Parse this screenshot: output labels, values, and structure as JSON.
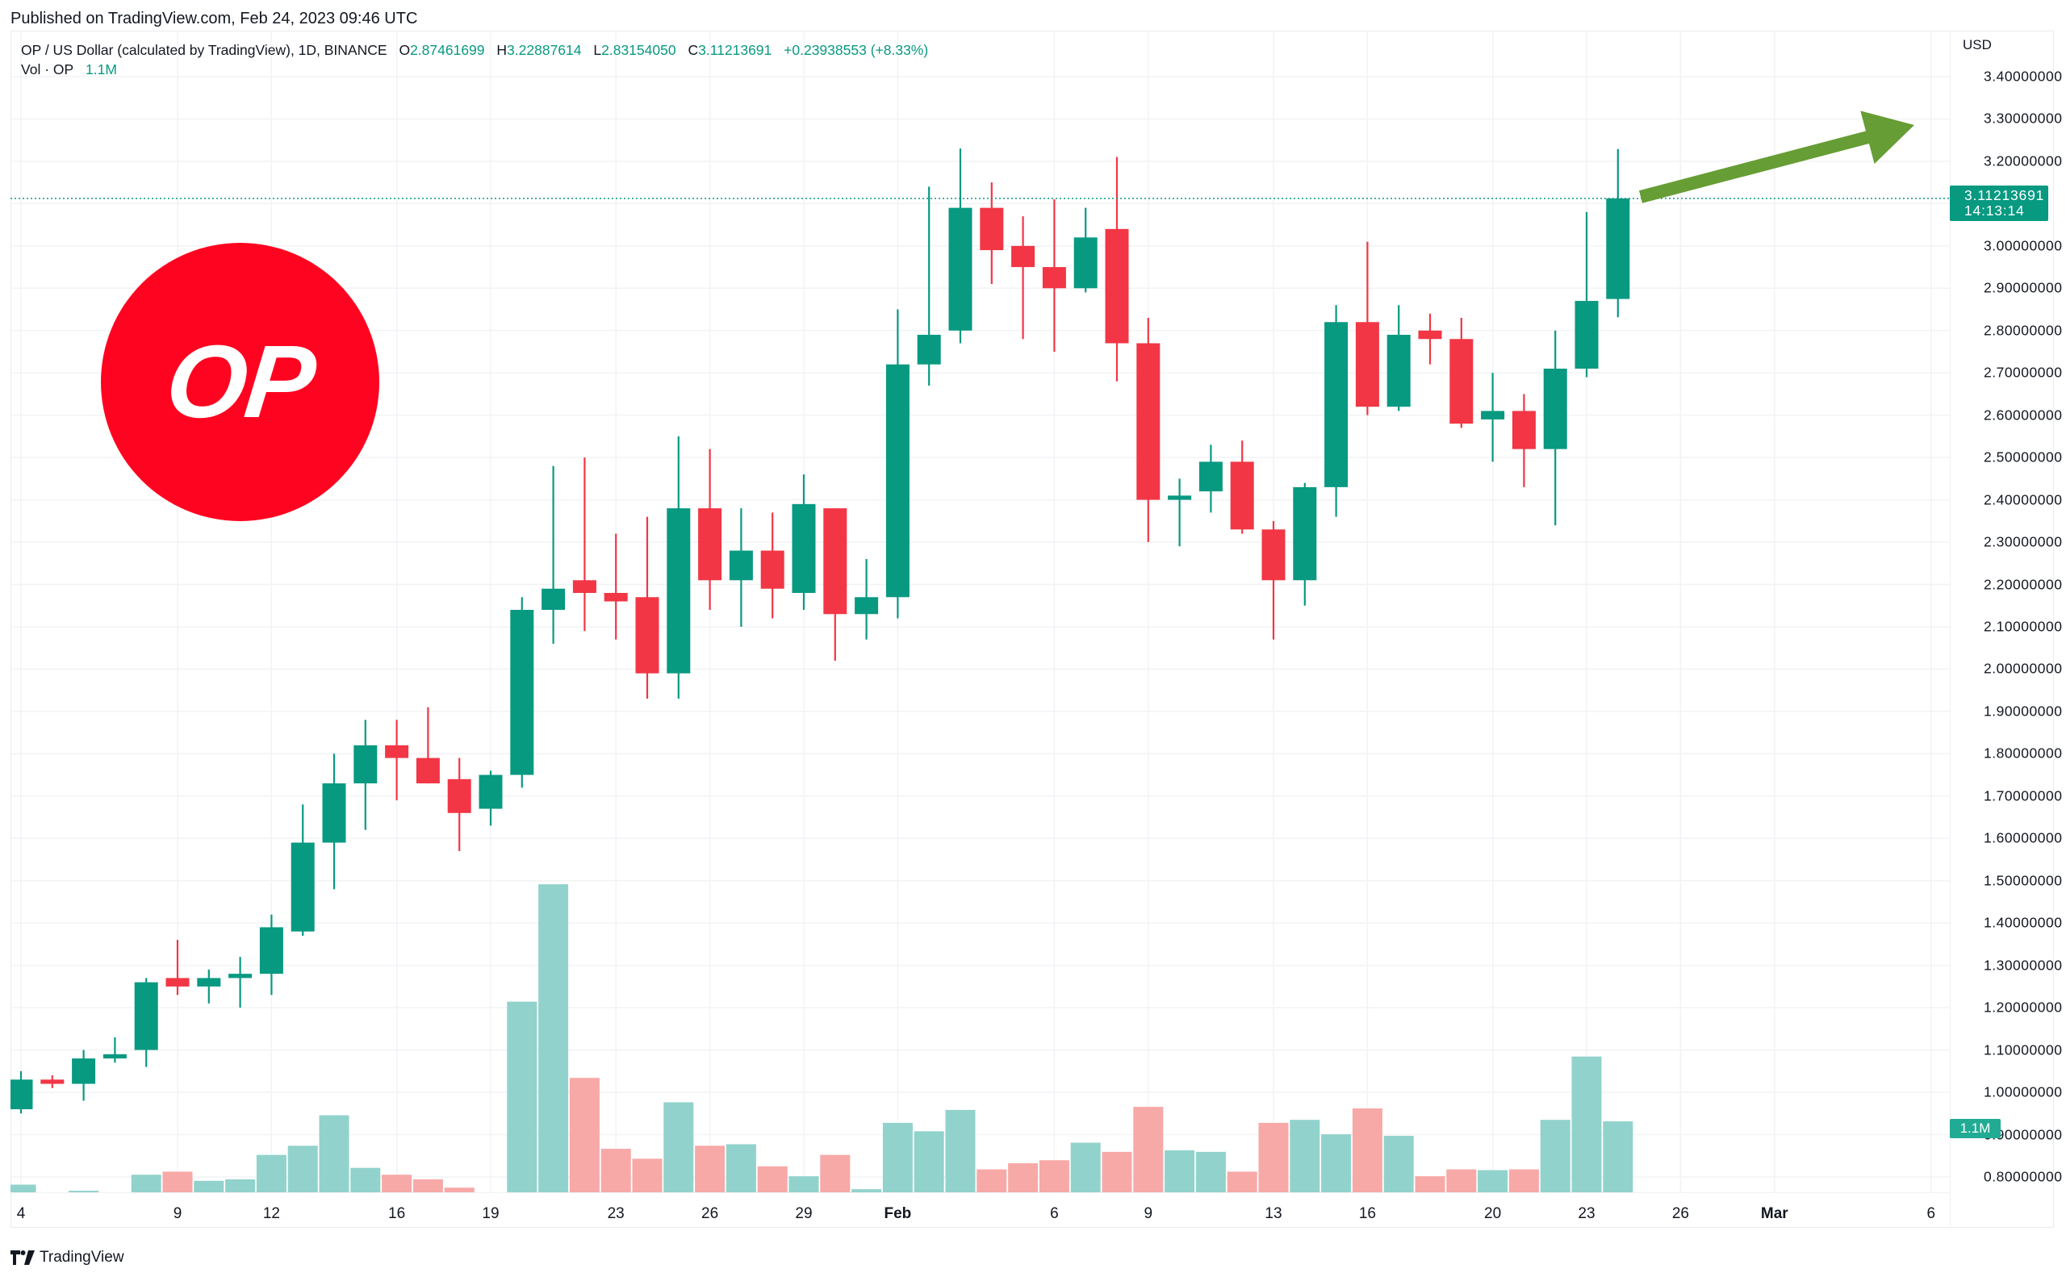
{
  "header": {
    "published": "Published on TradingView.com, Feb 24, 2023 09:46 UTC"
  },
  "legend": {
    "symbol": "OP / US Dollar (calculated by TradingView), 1D, BINANCE",
    "open_label": "O",
    "open": "2.87461699",
    "high_label": "H",
    "high": "3.22887614",
    "low_label": "L",
    "low": "2.83154050",
    "close_label": "C",
    "close": "3.11213691",
    "change": "+0.23938553 (+8.33%)",
    "vol_label": "Vol · OP",
    "vol_value": "1.1M"
  },
  "price_axis": {
    "currency": "USD",
    "ticks": [
      "3.40000000",
      "3.30000000",
      "3.20000000",
      "3.00000000",
      "2.90000000",
      "2.80000000",
      "2.70000000",
      "2.60000000",
      "2.50000000",
      "2.40000000",
      "2.30000000",
      "2.20000000",
      "2.10000000",
      "2.00000000",
      "1.90000000",
      "1.80000000",
      "1.70000000",
      "1.60000000",
      "1.50000000",
      "1.40000000",
      "1.30000000",
      "1.20000000",
      "1.10000000",
      "1.00000000",
      "0.90000000",
      "0.80000000"
    ],
    "current_price": "3.11213691",
    "countdown": "14:13:14",
    "volume_badge": "1.1M"
  },
  "time_axis": {
    "labels": [
      {
        "text": "4",
        "index": 0,
        "bold": false
      },
      {
        "text": "9",
        "index": 5,
        "bold": false
      },
      {
        "text": "12",
        "index": 8,
        "bold": false
      },
      {
        "text": "16",
        "index": 12,
        "bold": false
      },
      {
        "text": "19",
        "index": 15,
        "bold": false
      },
      {
        "text": "23",
        "index": 19,
        "bold": false
      },
      {
        "text": "26",
        "index": 22,
        "bold": false
      },
      {
        "text": "29",
        "index": 25,
        "bold": false
      },
      {
        "text": "Feb",
        "index": 28,
        "bold": true
      },
      {
        "text": "6",
        "index": 33,
        "bold": false
      },
      {
        "text": "9",
        "index": 36,
        "bold": false
      },
      {
        "text": "13",
        "index": 40,
        "bold": false
      },
      {
        "text": "16",
        "index": 43,
        "bold": false
      },
      {
        "text": "20",
        "index": 47,
        "bold": false
      },
      {
        "text": "23",
        "index": 50,
        "bold": false
      },
      {
        "text": "26",
        "index": 53,
        "bold": false
      },
      {
        "text": "Mar",
        "index": 56,
        "bold": true
      },
      {
        "text": "6",
        "index": 61,
        "bold": false
      }
    ]
  },
  "logo": {
    "text": "OP",
    "color": "#ff0420"
  },
  "brand": {
    "name": "TradingView"
  },
  "colors": {
    "up": "#089981",
    "down": "#f23645",
    "vol_up": "#92d2cc",
    "vol_down": "#f7a9a7",
    "arrow": "#669d34",
    "grid": "#f0f3fa",
    "last_price_line": "#089981"
  },
  "chart_data": {
    "type": "candlestick",
    "title": "OP / US Dollar (calculated by TradingView), 1D, BINANCE",
    "xlabel": "",
    "ylabel": "USD",
    "ylim": [
      0.72,
      3.5
    ],
    "grid": true,
    "dates": [
      "Jan 4",
      "Jan 5",
      "Jan 6",
      "Jan 7",
      "Jan 8",
      "Jan 9",
      "Jan 10",
      "Jan 11",
      "Jan 12",
      "Jan 13",
      "Jan 14",
      "Jan 15",
      "Jan 16",
      "Jan 17",
      "Jan 18",
      "Jan 19",
      "Jan 20",
      "Jan 21",
      "Jan 22",
      "Jan 23",
      "Jan 24",
      "Jan 25",
      "Jan 26",
      "Jan 27",
      "Jan 28",
      "Jan 29",
      "Jan 30",
      "Jan 31",
      "Feb 1",
      "Feb 2",
      "Feb 3",
      "Feb 4",
      "Feb 5",
      "Feb 6",
      "Feb 7",
      "Feb 8",
      "Feb 9",
      "Feb 10",
      "Feb 11",
      "Feb 12",
      "Feb 13",
      "Feb 14",
      "Feb 15",
      "Feb 16",
      "Feb 17",
      "Feb 18",
      "Feb 19",
      "Feb 20",
      "Feb 21",
      "Feb 22",
      "Feb 23",
      "Feb 24"
    ],
    "ohlc": [
      [
        0.96,
        1.05,
        0.95,
        1.03
      ],
      [
        1.03,
        1.04,
        1.01,
        1.02
      ],
      [
        1.02,
        1.1,
        0.98,
        1.08
      ],
      [
        1.08,
        1.13,
        1.07,
        1.09
      ],
      [
        1.1,
        1.27,
        1.06,
        1.26
      ],
      [
        1.27,
        1.36,
        1.23,
        1.25
      ],
      [
        1.25,
        1.29,
        1.21,
        1.27
      ],
      [
        1.27,
        1.32,
        1.2,
        1.28
      ],
      [
        1.28,
        1.42,
        1.23,
        1.39
      ],
      [
        1.38,
        1.68,
        1.37,
        1.59
      ],
      [
        1.59,
        1.8,
        1.48,
        1.73
      ],
      [
        1.73,
        1.88,
        1.62,
        1.82
      ],
      [
        1.82,
        1.88,
        1.69,
        1.79
      ],
      [
        1.79,
        1.91,
        1.73,
        1.73
      ],
      [
        1.74,
        1.79,
        1.57,
        1.66
      ],
      [
        1.67,
        1.76,
        1.63,
        1.75
      ],
      [
        1.75,
        2.17,
        1.72,
        2.14
      ],
      [
        2.14,
        2.48,
        2.06,
        2.19
      ],
      [
        2.21,
        2.5,
        2.09,
        2.18
      ],
      [
        2.18,
        2.32,
        2.07,
        2.16
      ],
      [
        2.17,
        2.36,
        1.93,
        1.99
      ],
      [
        1.99,
        2.55,
        1.93,
        2.38
      ],
      [
        2.38,
        2.52,
        2.14,
        2.21
      ],
      [
        2.21,
        2.38,
        2.1,
        2.28
      ],
      [
        2.28,
        2.37,
        2.12,
        2.19
      ],
      [
        2.18,
        2.46,
        2.14,
        2.39
      ],
      [
        2.38,
        2.38,
        2.02,
        2.13
      ],
      [
        2.13,
        2.26,
        2.07,
        2.17
      ],
      [
        2.17,
        2.85,
        2.12,
        2.72
      ],
      [
        2.72,
        3.14,
        2.67,
        2.79
      ],
      [
        2.8,
        3.23,
        2.77,
        3.09
      ],
      [
        3.09,
        3.15,
        2.91,
        2.99
      ],
      [
        3.0,
        3.07,
        2.78,
        2.95
      ],
      [
        2.95,
        3.11,
        2.75,
        2.9
      ],
      [
        2.9,
        3.09,
        2.89,
        3.02
      ],
      [
        3.04,
        3.21,
        2.68,
        2.77
      ],
      [
        2.77,
        2.83,
        2.3,
        2.4
      ],
      [
        2.4,
        2.45,
        2.29,
        2.41
      ],
      [
        2.42,
        2.53,
        2.37,
        2.49
      ],
      [
        2.49,
        2.54,
        2.32,
        2.33
      ],
      [
        2.33,
        2.35,
        2.07,
        2.21
      ],
      [
        2.21,
        2.44,
        2.15,
        2.43
      ],
      [
        2.43,
        2.86,
        2.36,
        2.82
      ],
      [
        2.82,
        3.01,
        2.6,
        2.62
      ],
      [
        2.62,
        2.86,
        2.61,
        2.79
      ],
      [
        2.8,
        2.84,
        2.72,
        2.78
      ],
      [
        2.78,
        2.83,
        2.57,
        2.58
      ],
      [
        2.59,
        2.7,
        2.49,
        2.61
      ],
      [
        2.61,
        2.65,
        2.43,
        2.52
      ],
      [
        2.52,
        2.8,
        2.34,
        2.71
      ],
      [
        2.71,
        3.08,
        2.69,
        2.87
      ],
      [
        2.87461699,
        3.22887614,
        2.8315405,
        3.11213691
      ]
    ],
    "volume_millions": [
      0.27,
      0.06,
      0.19,
      0.13,
      0.4,
      0.44,
      0.32,
      0.34,
      0.66,
      0.78,
      1.18,
      0.49,
      0.4,
      0.34,
      0.23,
      0.09,
      2.67,
      4.21,
      1.67,
      0.74,
      0.61,
      1.35,
      0.78,
      0.8,
      0.51,
      0.38,
      0.66,
      0.21,
      1.08,
      0.97,
      1.25,
      0.47,
      0.55,
      0.59,
      0.82,
      0.7,
      1.29,
      0.72,
      0.7,
      0.44,
      1.08,
      1.12,
      0.93,
      1.27,
      0.91,
      0.38,
      0.47,
      0.46,
      0.47,
      1.12,
      1.95,
      1.1
    ],
    "annotations": [
      "Green upward arrow from last close",
      "OP logo"
    ]
  }
}
